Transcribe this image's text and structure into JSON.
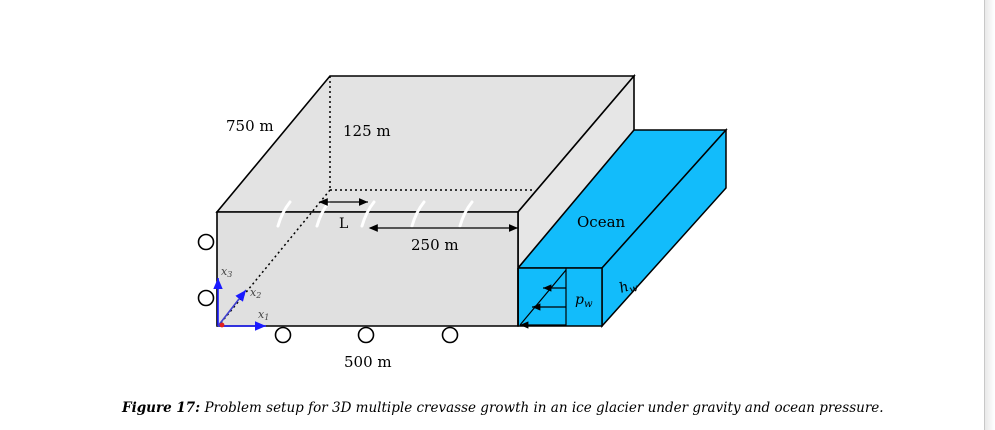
{
  "diagram": {
    "labels": {
      "depth": "750 m",
      "height": "125 m",
      "crevasse_spacing": "L",
      "crevasse_offset": "250 m",
      "length": "500 m",
      "ocean": "Ocean",
      "water_height": "h",
      "water_height_sub": "w",
      "water_pressure": "p",
      "water_pressure_sub": "w"
    },
    "axes": {
      "x1": "x",
      "x1_sub": "1",
      "x2": "x",
      "x2_sub": "2",
      "x3": "x",
      "x3_sub": "3"
    },
    "colors": {
      "ice_top": "#e3e3e3",
      "ice_front": "#e0e0e0",
      "ice_side": "#e6e6e6",
      "ocean": "#12bcfb",
      "axis_x1": "#1a1aff",
      "axis_x2": "#4040d0",
      "axis_x3": "#1a1aff",
      "origin": "#e02020"
    }
  },
  "caption": {
    "figure_label": "Figure 17:",
    "text": "Problem setup for 3D multiple crevasse growth in an ice glacier under gravity and ocean pressure."
  }
}
